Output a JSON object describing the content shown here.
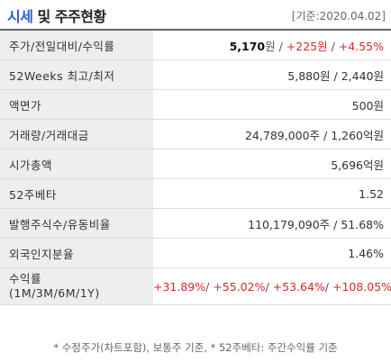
{
  "header": {
    "title_accent": "시세",
    "title_rest": "및 주주현황",
    "date": "[기준:2020.04.02]"
  },
  "rows": {
    "price": {
      "label": "주가/전일대비/수익률",
      "price": "5,170",
      "price_unit": "원",
      "sep": " / ",
      "change": "+225원",
      "rate": "+4.55%"
    },
    "high_low": {
      "label": "52Weeks 최고/최저",
      "value": "5,880원 / 2,440원"
    },
    "par_value": {
      "label": "액면가",
      "value": "500원"
    },
    "volume": {
      "label": "거래량/거래대금",
      "value": "24,789,000주 / 1,260억원"
    },
    "market_cap": {
      "label": "시가총액",
      "value": "5,696억원"
    },
    "beta": {
      "label": "52주베타",
      "value": "1.52"
    },
    "shares": {
      "label": "발행주식수/유동비율",
      "value": "110,179,090주 / 51.68%"
    },
    "foreign": {
      "label": "외국인지분율",
      "value": "1.46%"
    },
    "returns": {
      "label_line1": "수익률",
      "label_line2": "(1M/3M/6M/1Y)",
      "r1m": "+31.89%",
      "r3m": "+55.02%",
      "r6m": "+53.64%",
      "r1y": "+108.05%",
      "slash": "/ "
    }
  },
  "footnote": "* 수정주가(차트포함), 보통주 기준, * 52주베타: 주간수익률 기준",
  "colors": {
    "accent": "#2a62c9",
    "positive": "#d12b2b",
    "label_bg": "#eeeeee"
  }
}
